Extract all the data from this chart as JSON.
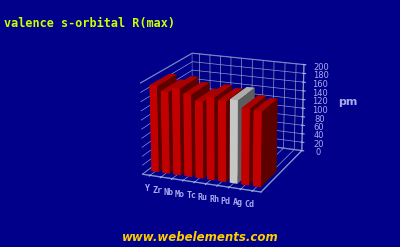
{
  "title": "valence s-orbital R(max)",
  "ylabel": "pm",
  "categories": [
    "Y",
    "Zr",
    "Nb",
    "Mo",
    "Tc",
    "Ru",
    "Rh",
    "Pd",
    "Ag",
    "Cd"
  ],
  "values": [
    190,
    180,
    190,
    180,
    168,
    180,
    175,
    180,
    165,
    162
  ],
  "bar_colors": [
    "#dd0000",
    "#dd0000",
    "#dd0000",
    "#dd0000",
    "#dd0000",
    "#dd0000",
    "#dd0000",
    "#e0e0e0",
    "#dd0000",
    "#dd0000"
  ],
  "background_color": "#00008b",
  "title_color": "#ccff00",
  "text_color": "#aaaaee",
  "watermark": "www.webelements.com",
  "watermark_color": "#ffcc00",
  "ylim": [
    0,
    200
  ],
  "yticks": [
    0,
    20,
    40,
    60,
    80,
    100,
    120,
    140,
    160,
    180,
    200
  ],
  "grid_color": "#8899cc",
  "pane_color": "#000080",
  "floor_color": "#0000aa"
}
